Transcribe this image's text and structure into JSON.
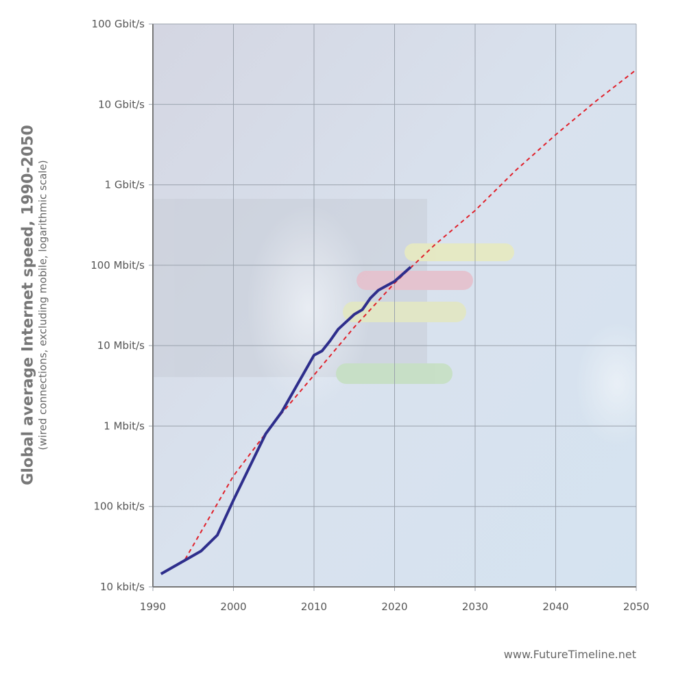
{
  "chart_data": {
    "type": "line",
    "title": "",
    "ylabel": "Global average Internet speed, 1990-2050",
    "ylabel_sub": "(wired connections, excluding mobile, logarithmic scale)",
    "xlim": [
      1990,
      2050
    ],
    "x_ticks": [
      1990,
      2000,
      2010,
      2020,
      2030,
      2040,
      2050
    ],
    "y_scale": "log",
    "y_unit": "Mbit/s",
    "ylim": [
      0.01,
      100000
    ],
    "y_ticks": [
      {
        "value": 100000,
        "label": "100 Gbit/s"
      },
      {
        "value": 10000,
        "label": "10 Gbit/s"
      },
      {
        "value": 1000,
        "label": "1 Gbit/s"
      },
      {
        "value": 100,
        "label": "100 Mbit/s"
      },
      {
        "value": 10,
        "label": "10 Mbit/s"
      },
      {
        "value": 1,
        "label": "1 Mbit/s"
      },
      {
        "value": 0.1,
        "label": "100 kbit/s"
      },
      {
        "value": 0.01,
        "label": "10 kbit/s"
      }
    ],
    "grid": true,
    "series": [
      {
        "style": "solid",
        "color": "#2e2e8c",
        "x": [
          1991,
          1996,
          1998,
          2000,
          2004,
          2006,
          2010,
          2011,
          2012,
          2013,
          2015,
          2016,
          2017,
          2018,
          2020,
          2022
        ],
        "y": [
          0.0145,
          0.028,
          0.044,
          0.12,
          0.8,
          1.5,
          7.6,
          8.6,
          11.5,
          16,
          24.5,
          28,
          39,
          49,
          63,
          95
        ]
      },
      {
        "style": "dashed",
        "color": "#e0202a",
        "x": [
          1994,
          2000,
          2005,
          2010,
          2015,
          2020,
          2025,
          2030,
          2035,
          2040,
          2045,
          2050
        ],
        "y": [
          0.022,
          0.24,
          1.1,
          4.3,
          17,
          60,
          180,
          480,
          1500,
          4200,
          11000,
          27000
        ]
      }
    ],
    "background_colors": {
      "plot": "#d6dbe6",
      "grid": "#9aa2ad"
    }
  },
  "credit": "www.FutureTimeline.net"
}
